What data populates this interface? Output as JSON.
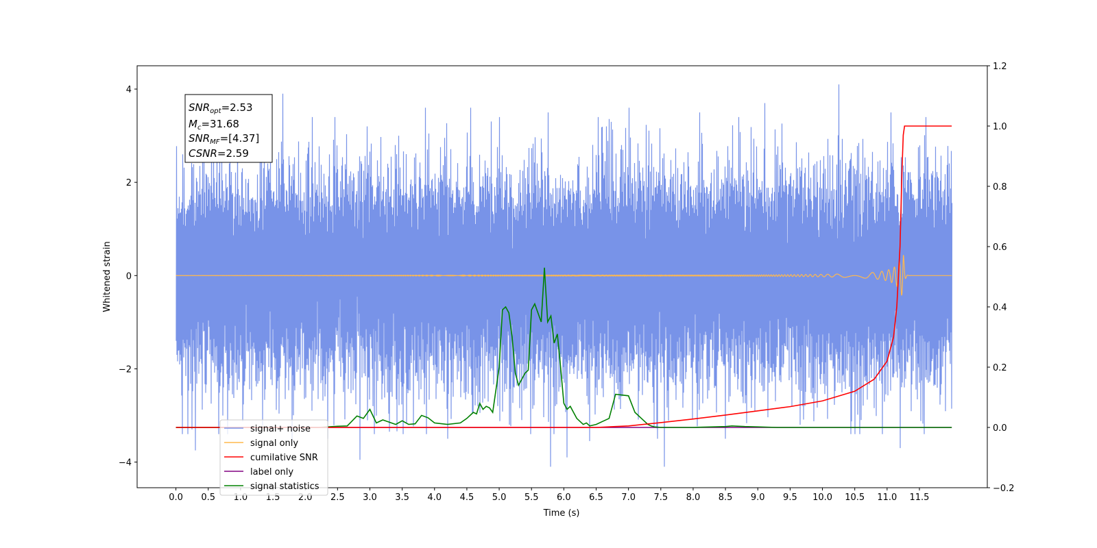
{
  "chart_data": {
    "type": "line",
    "title": "",
    "xlabel": "Time (s)",
    "ylabel": "Whitened strain",
    "y2label": "",
    "xlim": [
      -0.6,
      12.55
    ],
    "ylim": [
      -4.55,
      4.5
    ],
    "y2lim": [
      -0.2,
      1.2
    ],
    "x_ticks": [
      "0.0",
      "0.5",
      "1.0",
      "1.5",
      "2.0",
      "2.5",
      "3.0",
      "3.5",
      "4.0",
      "4.5",
      "5.0",
      "5.5",
      "6.0",
      "6.5",
      "7.0",
      "7.5",
      "8.0",
      "8.5",
      "9.0",
      "9.5",
      "10.0",
      "10.5",
      "11.0",
      "11.5"
    ],
    "y_ticks": [
      "−4",
      "−2",
      "0",
      "2",
      "4"
    ],
    "y2_ticks": [
      "−0.2",
      "0.0",
      "0.2",
      "0.4",
      "0.6",
      "0.8",
      "1.0",
      "1.2"
    ],
    "grid": false,
    "legend_position": "lower-left",
    "annotation": {
      "snr_opt": {
        "sym": "SNR",
        "sub": "opt",
        "value": "=2.53"
      },
      "mc": {
        "sym": "M",
        "sub": "c",
        "value": "=31.68"
      },
      "snr_mf": {
        "sym": "SNR",
        "sub": "MF",
        "value": "=[4.37]"
      },
      "csnr": {
        "sym": "CSNR",
        "sub": "",
        "value": "=2.59"
      }
    },
    "series": [
      {
        "name": "signal+ noise",
        "color": "#7893e8",
        "axis": "left",
        "style": "noise",
        "t_start": 0.0,
        "t_end": 12.0,
        "amplitude_sigma": 1.0,
        "peaks": [
          [
            0.1,
            2.6
          ],
          [
            0.25,
            -3.3
          ],
          [
            0.3,
            -3.75
          ],
          [
            0.55,
            3.25
          ],
          [
            0.8,
            -3.4
          ],
          [
            1.3,
            3.6
          ],
          [
            1.65,
            3.9
          ],
          [
            1.8,
            -3.6
          ],
          [
            2.1,
            3.4
          ],
          [
            2.35,
            -3.5
          ],
          [
            2.85,
            -3.95
          ],
          [
            2.95,
            3.2
          ],
          [
            3.3,
            -3.35
          ],
          [
            3.85,
            3.6
          ],
          [
            4.2,
            -3.5
          ],
          [
            4.55,
            3.6
          ],
          [
            5.0,
            3.4
          ],
          [
            5.35,
            -3.1
          ],
          [
            5.75,
            3.5
          ],
          [
            5.8,
            -4.1
          ],
          [
            6.05,
            -3.9
          ],
          [
            6.4,
            -3.55
          ],
          [
            6.65,
            3.2
          ],
          [
            7.0,
            3.6
          ],
          [
            7.45,
            -3.5
          ],
          [
            7.55,
            -4.1
          ],
          [
            8.1,
            3.5
          ],
          [
            8.5,
            -3.5
          ],
          [
            9.1,
            3.7
          ],
          [
            9.65,
            -3.2
          ],
          [
            10.25,
            4.1
          ],
          [
            10.6,
            -3.1
          ],
          [
            11.05,
            3.5
          ],
          [
            11.2,
            -3.7
          ],
          [
            11.6,
            3.4
          ]
        ]
      },
      {
        "name": "signal only",
        "color": "#ffb84d",
        "axis": "left",
        "style": "chirp",
        "t_merger": 11.25,
        "peak_amplitude": 0.6
      },
      {
        "name": "cumilative SNR",
        "color": "#ff0000",
        "axis": "right",
        "x": [
          0.0,
          6.5,
          7.0,
          7.5,
          8.0,
          8.5,
          9.0,
          9.5,
          10.0,
          10.5,
          10.8,
          11.0,
          11.1,
          11.15,
          11.2,
          11.23,
          11.25,
          11.27,
          11.3,
          11.5,
          12.0
        ],
        "y": [
          0.0,
          0.0,
          0.005,
          0.016,
          0.028,
          0.041,
          0.055,
          0.069,
          0.088,
          0.12,
          0.16,
          0.22,
          0.3,
          0.4,
          0.6,
          0.85,
          0.97,
          1.0,
          1.0,
          1.0,
          1.0
        ]
      },
      {
        "name": "label only",
        "color": "#800080",
        "axis": "right",
        "x": [
          0.0,
          12.0
        ],
        "y": [
          0.0,
          0.0
        ]
      },
      {
        "name": "signal statistics",
        "color": "#008000",
        "axis": "right",
        "x": [
          0.0,
          2.2,
          2.5,
          2.65,
          2.8,
          2.9,
          3.0,
          3.1,
          3.2,
          3.4,
          3.5,
          3.6,
          3.7,
          3.8,
          3.9,
          4.0,
          4.2,
          4.4,
          4.5,
          4.6,
          4.65,
          4.7,
          4.75,
          4.8,
          4.85,
          4.9,
          5.0,
          5.05,
          5.1,
          5.15,
          5.2,
          5.25,
          5.3,
          5.35,
          5.4,
          5.45,
          5.5,
          5.55,
          5.6,
          5.65,
          5.7,
          5.75,
          5.8,
          5.85,
          5.9,
          5.95,
          6.0,
          6.05,
          6.1,
          6.15,
          6.2,
          6.25,
          6.3,
          6.35,
          6.4,
          6.5,
          6.6,
          6.7,
          6.8,
          7.0,
          7.1,
          7.2,
          7.25,
          7.3,
          7.35,
          7.4,
          7.5,
          7.6,
          7.8,
          8.0,
          8.5,
          8.6,
          8.8,
          9.0,
          9.3,
          9.5,
          12.0
        ],
        "y": [
          0.0,
          0.0,
          0.004,
          0.005,
          0.038,
          0.03,
          0.06,
          0.015,
          0.025,
          0.01,
          0.022,
          0.01,
          0.012,
          0.04,
          0.032,
          0.015,
          0.01,
          0.015,
          0.03,
          0.05,
          0.045,
          0.08,
          0.06,
          0.07,
          0.065,
          0.05,
          0.2,
          0.39,
          0.4,
          0.38,
          0.3,
          0.18,
          0.14,
          0.16,
          0.18,
          0.19,
          0.39,
          0.41,
          0.38,
          0.35,
          0.53,
          0.35,
          0.37,
          0.28,
          0.31,
          0.2,
          0.08,
          0.06,
          0.07,
          0.05,
          0.03,
          0.02,
          0.01,
          0.015,
          0.005,
          0.01,
          0.02,
          0.03,
          0.11,
          0.105,
          0.05,
          0.03,
          0.02,
          0.01,
          0.005,
          0.002,
          0.0,
          0.0,
          0.0,
          0.0,
          0.003,
          0.005,
          0.003,
          0.002,
          0.0,
          0.0,
          0.0
        ]
      }
    ]
  }
}
